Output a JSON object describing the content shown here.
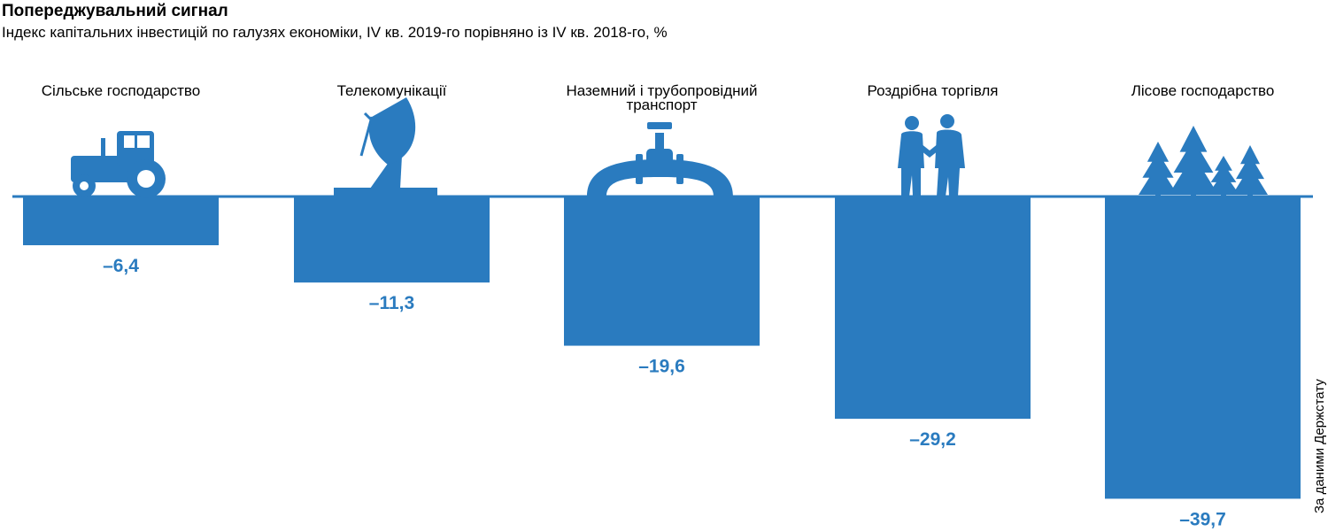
{
  "title": "Попереджувальний сигнал",
  "subtitle": "Індекс капітальних інвестицій по галузях економіки, IV кв. 2019-го порівняно із IV кв. 2018-го, %",
  "source": "За даними Держстату",
  "colors": {
    "bar": "#2a7bbf",
    "label": "#2a7bbf",
    "icon": "#2a7bbf"
  },
  "chart_data": {
    "type": "bar",
    "categories": [
      "Сільське господарство",
      "Телекомунікації",
      "Наземний і трубопровідний транспорт",
      "Роздрібна торгівля",
      "Лісове господарство"
    ],
    "category_lines": [
      [
        "Сільське господарство"
      ],
      [
        "Телекомунікації"
      ],
      [
        "Наземний і трубопровідний",
        "транспорт"
      ],
      [
        "Роздрібна торгівля"
      ],
      [
        "Лісове господарство"
      ]
    ],
    "values": [
      -6.4,
      -11.3,
      -19.6,
      -29.2,
      -39.7
    ],
    "value_labels": [
      "–6,4",
      "–11,3",
      "–19,6",
      "–29,2",
      "–39,7"
    ],
    "icons": [
      "tractor-icon",
      "satellite-dish-icon",
      "pipeline-valve-icon",
      "handshake-icon",
      "trees-icon"
    ],
    "ylim": [
      -40,
      0
    ]
  }
}
